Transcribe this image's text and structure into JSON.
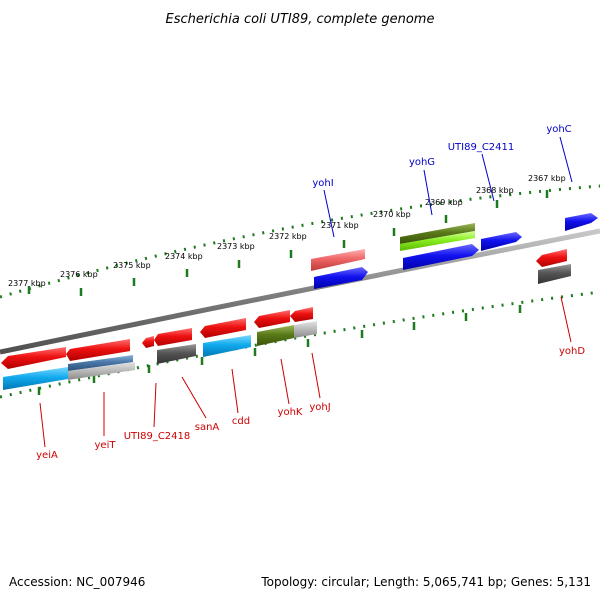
{
  "title": "Escherichia coli UTI89, complete genome",
  "footer": {
    "accession": "Accession: NC_007946",
    "topology": "Topology: circular; Length: 5,065,741 bp; Genes: 5,131"
  },
  "kbp_labels": [
    "2377 kbp",
    "2376 kbp",
    "2375 kbp",
    "2374 kbp",
    "2373 kbp",
    "2372 kbp",
    "2371 kbp",
    "2370 kbp",
    "2369 kbp",
    "2368 kbp",
    "2367 kbp"
  ],
  "gene_labels_top": [
    "yohI",
    "yohG",
    "UTI89_C2411",
    "yohC"
  ],
  "gene_labels_bottom": [
    "yeiA",
    "yeiT",
    "UTI89_C2418",
    "sanA",
    "cdd",
    "yohK",
    "yohJ",
    "yohD"
  ],
  "colors": {
    "backbone": "#808080",
    "tick": "#1e7a1e",
    "gene_red": "#ee1111",
    "gene_blue": "#1111ee",
    "gene_cyan": "#11aaee",
    "gene_gray": "#555555",
    "gene_olive": "#5a7a1a",
    "gene_lime": "#88ee22",
    "gene_pink": "#ee6666",
    "leader_top": "#0000cc",
    "leader_bottom": "#cc0000"
  }
}
